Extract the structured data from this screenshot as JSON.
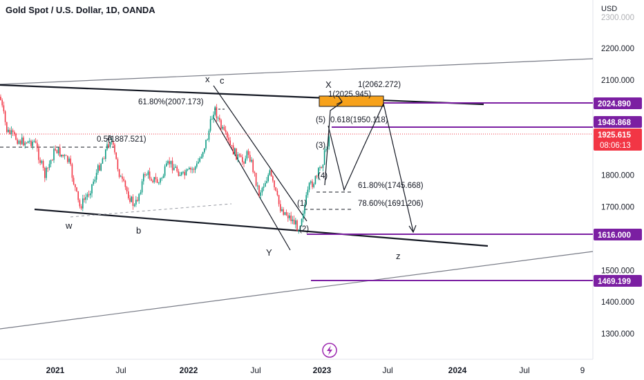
{
  "header": {
    "title": "Gold Spot / U.S. Dollar, 1D, OANDA",
    "currency": "USD"
  },
  "chart_data": {
    "type": "candlestick",
    "ylim": [
      1280,
      2250
    ],
    "yticks": [
      {
        "value": 2200,
        "label": "2200.000"
      },
      {
        "value": 2100,
        "label": "2100.000"
      },
      {
        "value": 1800,
        "label": "1800.000"
      },
      {
        "value": 1700,
        "label": "1700.000"
      },
      {
        "value": 1500,
        "label": "1500.000"
      },
      {
        "value": 1400,
        "label": "1400.000"
      },
      {
        "value": 1300,
        "label": "1300.000"
      }
    ],
    "xticks": [
      {
        "label": "2021",
        "bold": true
      },
      {
        "label": "Jul",
        "bold": false
      },
      {
        "label": "2022",
        "bold": true
      },
      {
        "label": "Jul",
        "bold": false
      },
      {
        "label": "2023",
        "bold": true
      },
      {
        "label": "Jul",
        "bold": false
      },
      {
        "label": "2024",
        "bold": true
      },
      {
        "label": "Jul",
        "bold": false
      },
      {
        "label": "9",
        "bold": false
      }
    ],
    "current_price": {
      "label": "1925.615",
      "countdown": "08:06:13",
      "value": 1925.615,
      "color": "#f23645"
    },
    "price_tags": [
      {
        "label": "2024.890",
        "value": 2024.89,
        "color": "#7b1fa2"
      },
      {
        "label": "1948.868",
        "value": 1948.868,
        "color": "#7b1fa2"
      },
      {
        "label": "1616.000",
        "value": 1616.0,
        "color": "#7b1fa2"
      },
      {
        "label": "1469.199",
        "value": 1469.199,
        "color": "#7b1fa2"
      }
    ],
    "annotations": [
      {
        "text": "61.80%(2007.173)"
      },
      {
        "text": "0.5(1887.521)"
      },
      {
        "text": "1(2062.272)"
      },
      {
        "text": "1(2025.945)"
      },
      {
        "text": "0.618(1950.118)"
      },
      {
        "text": "61.80%(1745.668)"
      },
      {
        "text": "78.60%(1691.206)"
      }
    ],
    "wave_labels": [
      "w",
      "a",
      "b",
      "x",
      "c",
      "Y",
      "X",
      "z",
      "(1)",
      "(2)",
      "(3)",
      "(4)",
      "(5)"
    ],
    "colors": {
      "bull": "#089981",
      "bear": "#f23645",
      "purple": "#7b1fa2",
      "box": "#f7a21b"
    }
  }
}
